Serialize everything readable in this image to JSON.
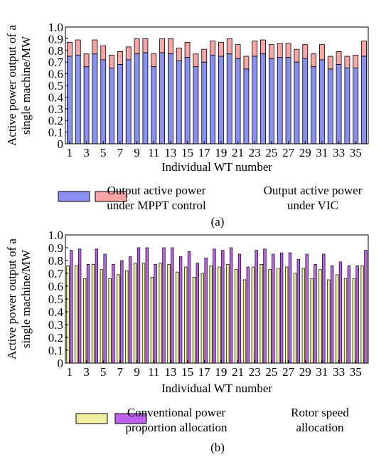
{
  "chart_data": [
    {
      "type": "bar",
      "mode": "stacked",
      "panel_label": "(a)",
      "xlabel": "Individual WT number",
      "ylabel_line1": "Active power output of a",
      "ylabel_line2": "single machine/MW",
      "ylim": [
        0,
        1.0
      ],
      "y_ticks": [
        "0",
        "0.1",
        "0.2",
        "0.3",
        "0.4",
        "0.5",
        "0.6",
        "0.7",
        "0.8",
        "0.9",
        "1.0"
      ],
      "categories": [
        1,
        2,
        3,
        4,
        5,
        6,
        7,
        8,
        9,
        10,
        11,
        12,
        13,
        14,
        15,
        16,
        17,
        18,
        19,
        20,
        21,
        22,
        23,
        24,
        25,
        26,
        27,
        28,
        29,
        30,
        31,
        32,
        33,
        34,
        35,
        36
      ],
      "x_tick_labels": [
        "1",
        "3",
        "5",
        "7",
        "9",
        "11",
        "13",
        "15",
        "17",
        "19",
        "21",
        "23",
        "25",
        "27",
        "29",
        "31",
        "33",
        "35"
      ],
      "series": [
        {
          "name": "Output active power under MPPT control",
          "legend_line1": "Output active power",
          "legend_line2": "under MPPT control",
          "color": "#8a8ff2",
          "values": [
            0.75,
            0.76,
            0.66,
            0.77,
            0.72,
            0.65,
            0.68,
            0.72,
            0.77,
            0.78,
            0.66,
            0.78,
            0.77,
            0.71,
            0.74,
            0.66,
            0.7,
            0.76,
            0.75,
            0.77,
            0.73,
            0.64,
            0.75,
            0.77,
            0.73,
            0.74,
            0.74,
            0.7,
            0.73,
            0.66,
            0.72,
            0.64,
            0.68,
            0.65,
            0.65,
            0.75
          ]
        },
        {
          "name": "Output active power under VIC",
          "legend_line1": "Output active power",
          "legend_line2": "under VIC",
          "color": "#f7a5a5",
          "values": [
            0.87,
            0.89,
            0.77,
            0.89,
            0.84,
            0.76,
            0.79,
            0.83,
            0.9,
            0.9,
            0.77,
            0.9,
            0.9,
            0.82,
            0.87,
            0.77,
            0.81,
            0.88,
            0.87,
            0.9,
            0.85,
            0.75,
            0.88,
            0.89,
            0.85,
            0.86,
            0.86,
            0.81,
            0.85,
            0.77,
            0.85,
            0.75,
            0.79,
            0.75,
            0.76,
            0.88
          ]
        }
      ]
    },
    {
      "type": "bar",
      "mode": "grouped",
      "panel_label": "(b)",
      "xlabel": "Individual WT number",
      "ylabel_line1": "Active power output of a",
      "ylabel_line2": "single machine/MW",
      "ylim": [
        0,
        1.0
      ],
      "y_ticks": [
        "0",
        "0.1",
        "0.2",
        "0.3",
        "0.4",
        "0.5",
        "0.6",
        "0.7",
        "0.8",
        "0.9",
        "1.0"
      ],
      "categories": [
        1,
        2,
        3,
        4,
        5,
        6,
        7,
        8,
        9,
        10,
        11,
        12,
        13,
        14,
        15,
        16,
        17,
        18,
        19,
        20,
        21,
        22,
        23,
        24,
        25,
        26,
        27,
        28,
        29,
        30,
        31,
        32,
        33,
        34,
        35,
        36
      ],
      "x_tick_labels": [
        "1",
        "3",
        "5",
        "7",
        "9",
        "11",
        "13",
        "15",
        "17",
        "19",
        "21",
        "23",
        "25",
        "27",
        "29",
        "31",
        "33",
        "35"
      ],
      "series": [
        {
          "name": "Conventional power proportion allocation",
          "legend_line1": "Conventional power",
          "legend_line2": "proportion allocation",
          "color": "#f2f0a0",
          "values": [
            0.76,
            0.76,
            0.66,
            0.77,
            0.73,
            0.66,
            0.69,
            0.72,
            0.78,
            0.78,
            0.67,
            0.78,
            0.77,
            0.71,
            0.75,
            0.67,
            0.7,
            0.76,
            0.75,
            0.77,
            0.73,
            0.65,
            0.75,
            0.77,
            0.73,
            0.74,
            0.75,
            0.7,
            0.74,
            0.66,
            0.73,
            0.65,
            0.69,
            0.66,
            0.66,
            0.76
          ]
        },
        {
          "name": "Rotor speed allocation",
          "legend_line1": "Rotor speed",
          "legend_line2": "allocation",
          "color": "#c060ee",
          "values": [
            0.88,
            0.89,
            0.77,
            0.89,
            0.85,
            0.77,
            0.8,
            0.83,
            0.9,
            0.9,
            0.77,
            0.9,
            0.9,
            0.83,
            0.87,
            0.78,
            0.82,
            0.89,
            0.88,
            0.9,
            0.85,
            0.75,
            0.88,
            0.89,
            0.85,
            0.86,
            0.86,
            0.81,
            0.85,
            0.77,
            0.85,
            0.76,
            0.79,
            0.76,
            0.76,
            0.88
          ]
        }
      ]
    }
  ]
}
